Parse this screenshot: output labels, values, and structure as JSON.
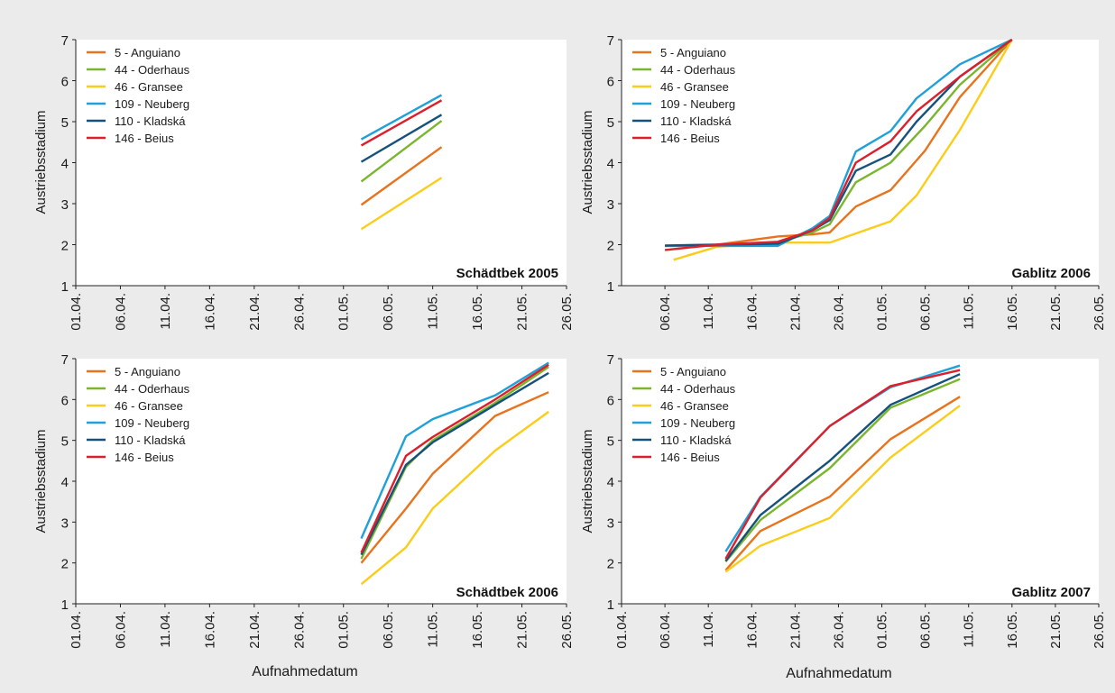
{
  "figure": {
    "background": "#ebebeb",
    "plot_background": "#ffffff",
    "xlabel_shared": "Aufnahmedatum"
  },
  "chart_data": [
    {
      "type": "line",
      "title": "Schädtbek 2005",
      "ylabel": "Austriebsstadium",
      "xlabel": "",
      "ylim": [
        1,
        7
      ],
      "yticks": [
        1,
        2,
        3,
        4,
        5,
        6,
        7
      ],
      "x_ticks": [
        "01.04.",
        "06.04.",
        "11.04.",
        "16.04.",
        "21.04.",
        "26.04.",
        "01.05.",
        "06.05.",
        "11.05.",
        "16.05.",
        "21.05.",
        "26.05."
      ],
      "legend_position": "top-left",
      "grid": false,
      "series": [
        {
          "name": "5 - Anguiano",
          "color": "#e8731c",
          "x": [
            "03.05.",
            "12.05."
          ],
          "y": [
            2.97,
            4.38
          ]
        },
        {
          "name": "44 - Oderhaus",
          "color": "#7ab52e",
          "x": [
            "03.05.",
            "12.05."
          ],
          "y": [
            3.54,
            5.02
          ]
        },
        {
          "name": "46 - Gransee",
          "color": "#fbcd1a",
          "x": [
            "03.05.",
            "12.05."
          ],
          "y": [
            2.38,
            3.63
          ]
        },
        {
          "name": "109 - Neuberg",
          "color": "#1fa0d9",
          "x": [
            "03.05.",
            "12.05."
          ],
          "y": [
            4.57,
            5.65
          ]
        },
        {
          "name": "110 - Kladská",
          "color": "#15517d",
          "x": [
            "03.05.",
            "12.05."
          ],
          "y": [
            4.02,
            5.17
          ]
        },
        {
          "name": "146 - Beius",
          "color": "#dc1f2b",
          "x": [
            "03.05.",
            "12.05."
          ],
          "y": [
            4.42,
            5.52
          ]
        }
      ]
    },
    {
      "type": "line",
      "title": "Gablitz 2006",
      "ylabel": "Austriebsstadium",
      "xlabel": "",
      "ylim": [
        1,
        7
      ],
      "yticks": [
        1,
        2,
        3,
        4,
        5,
        6,
        7
      ],
      "x_ticks": [
        "06.04.",
        "11.04.",
        "16.04.",
        "21.04.",
        "26.04.",
        "01.05.",
        "06.05.",
        "11.05.",
        "16.05.",
        "21.05.",
        "26.05."
      ],
      "legend_position": "top-left",
      "grid": false,
      "series": [
        {
          "name": "5 - Anguiano",
          "color": "#e8731c",
          "x": [
            "06.04.",
            "12.04.",
            "19.04.",
            "23.04.",
            "25.04.",
            "28.04.",
            "02.05.",
            "06.05.",
            "10.05.",
            "16.05."
          ],
          "y": [
            1.97,
            2.0,
            2.2,
            2.25,
            2.3,
            2.93,
            3.33,
            4.3,
            5.6,
            7.0
          ]
        },
        {
          "name": "44 - Oderhaus",
          "color": "#7ab52e",
          "x": [
            "06.04.",
            "12.04.",
            "19.04.",
            "23.04.",
            "25.04.",
            "28.04.",
            "02.05.",
            "06.05.",
            "10.05.",
            "16.05."
          ],
          "y": [
            1.97,
            1.98,
            2.05,
            2.3,
            2.5,
            3.52,
            4.0,
            4.9,
            5.9,
            7.0
          ]
        },
        {
          "name": "46 - Gransee",
          "color": "#fbcd1a",
          "x": [
            "07.04.",
            "12.04.",
            "19.04.",
            "25.04.",
            "02.05.",
            "05.05.",
            "10.05.",
            "16.05."
          ],
          "y": [
            1.63,
            1.95,
            2.05,
            2.05,
            2.57,
            3.2,
            4.8,
            7.0
          ]
        },
        {
          "name": "109 - Neuberg",
          "color": "#1fa0d9",
          "x": [
            "06.04.",
            "12.04.",
            "19.04.",
            "23.04.",
            "25.04.",
            "28.04.",
            "02.05.",
            "05.05.",
            "10.05.",
            "16.05."
          ],
          "y": [
            1.97,
            1.97,
            1.97,
            2.4,
            2.7,
            4.27,
            4.77,
            5.57,
            6.4,
            7.0
          ]
        },
        {
          "name": "110 - Kladská",
          "color": "#15517d",
          "x": [
            "06.04.",
            "12.04.",
            "19.04.",
            "23.04.",
            "25.04.",
            "28.04.",
            "02.05.",
            "05.05.",
            "10.05.",
            "16.05."
          ],
          "y": [
            1.98,
            2.0,
            2.02,
            2.35,
            2.6,
            3.8,
            4.2,
            5.0,
            6.1,
            7.0
          ]
        },
        {
          "name": "146 - Beius",
          "color": "#dc1f2b",
          "x": [
            "06.04.",
            "12.04.",
            "19.04.",
            "23.04.",
            "25.04.",
            "28.04.",
            "02.05.",
            "05.05.",
            "10.05.",
            "16.05."
          ],
          "y": [
            1.87,
            2.0,
            2.07,
            2.35,
            2.65,
            4.0,
            4.52,
            5.25,
            6.1,
            7.0
          ]
        }
      ]
    },
    {
      "type": "line",
      "title": "Schädtbek 2006",
      "ylabel": "Austriebsstadium",
      "xlabel": "Aufnahmedatum",
      "ylim": [
        1,
        7
      ],
      "yticks": [
        1,
        2,
        3,
        4,
        5,
        6,
        7
      ],
      "x_ticks": [
        "01.04.",
        "06.04.",
        "11.04.",
        "16.04.",
        "21.04.",
        "26.04.",
        "01.05.",
        "06.05.",
        "11.05.",
        "16.05.",
        "21.05.",
        "26.05."
      ],
      "legend_position": "top-left",
      "grid": false,
      "series": [
        {
          "name": "5 - Anguiano",
          "color": "#e8731c",
          "x": [
            "03.05.",
            "08.05.",
            "11.05.",
            "18.05.",
            "24.05."
          ],
          "y": [
            2.0,
            3.33,
            4.18,
            5.6,
            6.18
          ]
        },
        {
          "name": "44 - Oderhaus",
          "color": "#7ab52e",
          "x": [
            "03.05.",
            "08.05.",
            "11.05.",
            "18.05.",
            "24.05."
          ],
          "y": [
            2.1,
            4.35,
            5.0,
            5.92,
            6.8
          ]
        },
        {
          "name": "46 - Gransee",
          "color": "#fbcd1a",
          "x": [
            "03.05.",
            "08.05.",
            "11.05.",
            "18.05.",
            "24.05."
          ],
          "y": [
            1.48,
            2.38,
            3.33,
            4.75,
            5.7
          ]
        },
        {
          "name": "109 - Neuberg",
          "color": "#1fa0d9",
          "x": [
            "03.05.",
            "08.05.",
            "11.05.",
            "18.05.",
            "24.05."
          ],
          "y": [
            2.6,
            5.1,
            5.52,
            6.1,
            6.9
          ]
        },
        {
          "name": "110 - Kladská",
          "color": "#15517d",
          "x": [
            "03.05.",
            "08.05.",
            "11.05.",
            "18.05.",
            "24.05."
          ],
          "y": [
            2.2,
            4.4,
            4.95,
            5.87,
            6.65
          ]
        },
        {
          "name": "146 - Beius",
          "color": "#dc1f2b",
          "x": [
            "03.05.",
            "08.05.",
            "11.05.",
            "18.05.",
            "24.05."
          ],
          "y": [
            2.25,
            4.62,
            5.08,
            6.0,
            6.85
          ]
        }
      ]
    },
    {
      "type": "line",
      "title": "Gablitz 2007",
      "ylabel": "Austriebsstadium",
      "xlabel": "Aufnahmedatum",
      "ylim": [
        1,
        7
      ],
      "yticks": [
        1,
        2,
        3,
        4,
        5,
        6,
        7
      ],
      "x_ticks": [
        "01.04.",
        "06.04.",
        "11.04.",
        "16.04.",
        "21.04.",
        "26.04.",
        "01.05.",
        "06.05.",
        "11.05.",
        "16.05.",
        "21.05.",
        "26.05."
      ],
      "legend_position": "top-left",
      "grid": false,
      "series": [
        {
          "name": "5 - Anguiano",
          "color": "#e8731c",
          "x": [
            "13.04.",
            "17.04.",
            "25.04.",
            "02.05.",
            "10.05."
          ],
          "y": [
            1.82,
            2.78,
            3.62,
            5.03,
            6.07
          ]
        },
        {
          "name": "44 - Oderhaus",
          "color": "#7ab52e",
          "x": [
            "13.04.",
            "17.04.",
            "25.04.",
            "02.05.",
            "10.05."
          ],
          "y": [
            2.03,
            3.05,
            4.32,
            5.8,
            6.5
          ]
        },
        {
          "name": "46 - Gransee",
          "color": "#fbcd1a",
          "x": [
            "13.04.",
            "17.04.",
            "25.04.",
            "02.05.",
            "10.05."
          ],
          "y": [
            1.78,
            2.42,
            3.1,
            4.58,
            5.85
          ]
        },
        {
          "name": "109 - Neuberg",
          "color": "#1fa0d9",
          "x": [
            "13.04.",
            "17.04.",
            "25.04.",
            "02.05.",
            "10.05."
          ],
          "y": [
            2.28,
            3.62,
            5.35,
            6.3,
            6.83
          ]
        },
        {
          "name": "110 - Kladská",
          "color": "#15517d",
          "x": [
            "13.04.",
            "17.04.",
            "25.04.",
            "02.05.",
            "10.05."
          ],
          "y": [
            2.05,
            3.17,
            4.5,
            5.87,
            6.62
          ]
        },
        {
          "name": "146 - Beius",
          "color": "#dc1f2b",
          "x": [
            "13.04.",
            "17.04.",
            "25.04.",
            "02.05.",
            "10.05."
          ],
          "y": [
            2.1,
            3.6,
            5.35,
            6.33,
            6.72
          ]
        }
      ]
    }
  ]
}
